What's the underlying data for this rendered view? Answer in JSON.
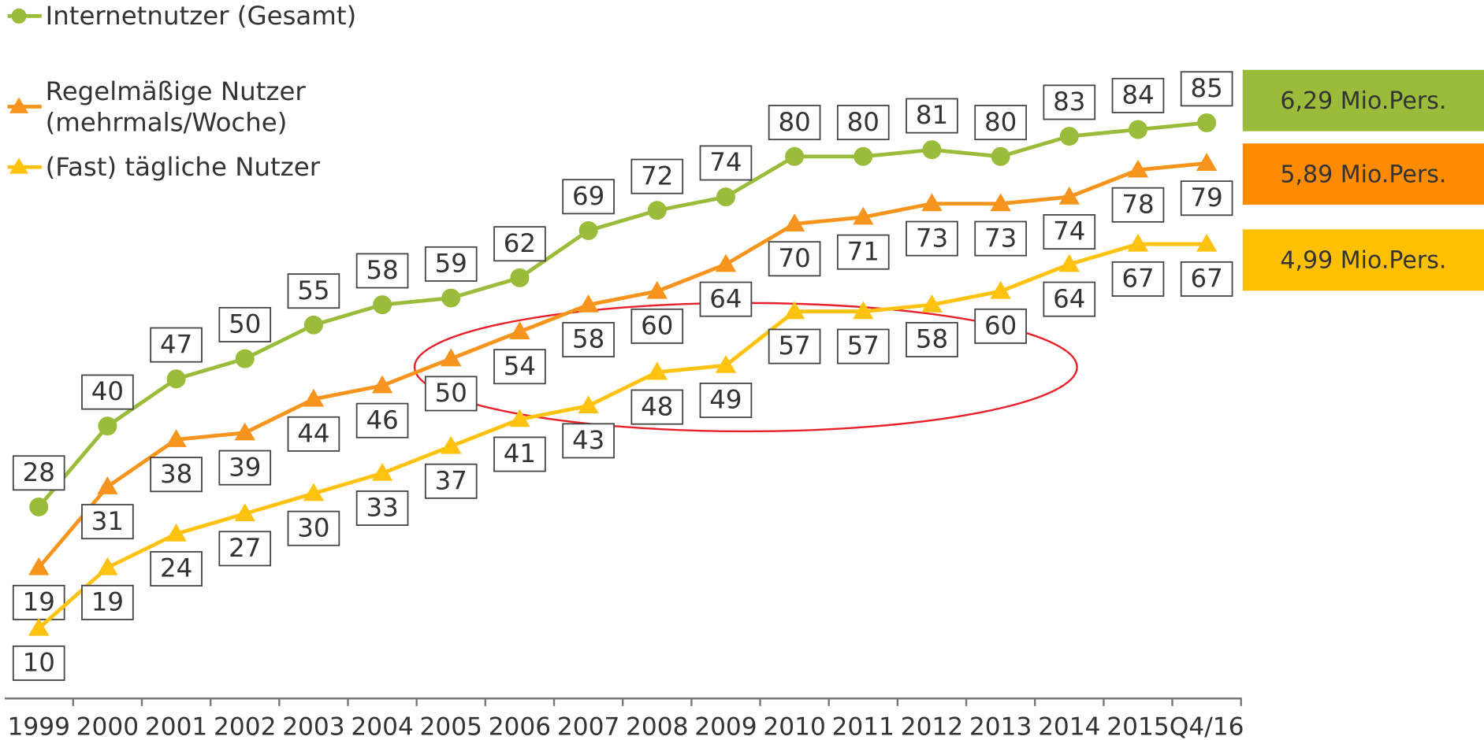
{
  "chart_data": {
    "type": "line",
    "categories": [
      "1999",
      "2000",
      "2001",
      "2002",
      "2003",
      "2004",
      "2005",
      "2006",
      "2007",
      "2008",
      "2009",
      "2010",
      "2011",
      "2012",
      "2013",
      "2014",
      "2015",
      "Q4/16"
    ],
    "ylim": [
      0,
      100
    ],
    "series": [
      {
        "name": "Internetnutzer (Gesamt)",
        "color": "#9bbb3b",
        "marker": "circle",
        "label_position": "above",
        "end_label": "6,29 Mio.Pers.",
        "values": [
          28,
          40,
          47,
          50,
          55,
          58,
          59,
          62,
          69,
          72,
          74,
          80,
          80,
          81,
          80,
          83,
          84,
          85
        ]
      },
      {
        "name": "Regelmäßige Nutzer (mehrmals/Woche)",
        "color": "#f7941d",
        "marker": "triangle",
        "label_position": "below",
        "end_label": "5,89 Mio.Pers.",
        "values": [
          19,
          31,
          38,
          39,
          44,
          46,
          50,
          54,
          58,
          60,
          64,
          70,
          71,
          73,
          73,
          74,
          78,
          79
        ]
      },
      {
        "name": "(Fast) tägliche Nutzer",
        "color": "#ffc20e",
        "marker": "triangle",
        "label_position": "below",
        "end_label": "4,99 Mio.Pers.",
        "values": [
          10,
          19,
          24,
          27,
          30,
          33,
          37,
          41,
          43,
          48,
          49,
          57,
          57,
          58,
          60,
          64,
          67,
          67
        ]
      }
    ]
  }
}
